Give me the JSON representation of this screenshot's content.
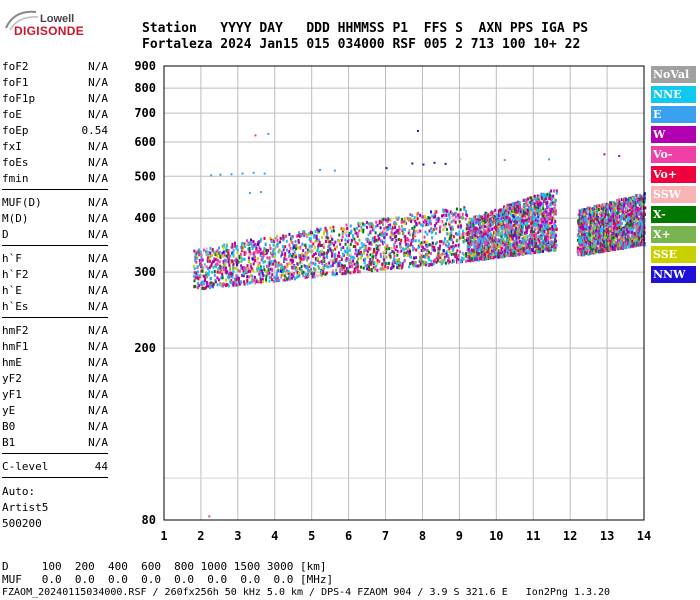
{
  "logo": {
    "brand": "Lowell",
    "product": "DIGISONDE"
  },
  "header": {
    "row1": "Station   YYYY DAY   DDD HHMMSS P1  FFS S  AXN PPS IGA PS",
    "row2": "Fortaleza 2024 Jan15 015 034000 RSF 005 2 713 100 10+ 22"
  },
  "params": [
    {
      "group": [
        [
          "foF2",
          "N/A"
        ],
        [
          "foF1",
          "N/A"
        ],
        [
          "foF1p",
          "N/A"
        ],
        [
          "foE",
          "N/A"
        ],
        [
          "foEp",
          "0.54"
        ],
        [
          "fxI",
          "N/A"
        ],
        [
          "foEs",
          "N/A"
        ],
        [
          "fmin",
          "N/A"
        ]
      ]
    },
    {
      "group": [
        [
          "MUF(D)",
          "N/A"
        ],
        [
          "M(D)",
          "N/A"
        ],
        [
          "D",
          "N/A"
        ]
      ]
    },
    {
      "group": [
        [
          "h`F",
          "N/A"
        ],
        [
          "h`F2",
          "N/A"
        ],
        [
          "h`E",
          "N/A"
        ],
        [
          "h`Es",
          "N/A"
        ]
      ]
    },
    {
      "group": [
        [
          "hmF2",
          "N/A"
        ],
        [
          "hmF1",
          "N/A"
        ],
        [
          "hmE",
          "N/A"
        ],
        [
          "yF2",
          "N/A"
        ],
        [
          "yF1",
          "N/A"
        ],
        [
          "yE",
          "N/A"
        ],
        [
          "B0",
          "N/A"
        ],
        [
          "B1",
          "N/A"
        ]
      ]
    },
    {
      "group": [
        [
          "C-level",
          "44"
        ]
      ]
    }
  ],
  "autoscale": {
    "label": "Auto:",
    "name": "Artist5",
    "version": "500200"
  },
  "legend": [
    {
      "label": "NoVal",
      "color": "#a0a0a0"
    },
    {
      "label": "NNE",
      "color": "#10c8f0"
    },
    {
      "label": "E",
      "color": "#3aa0f0"
    },
    {
      "label": "W",
      "color": "#b000b0"
    },
    {
      "label": "Vo-",
      "color": "#f040a8"
    },
    {
      "label": "Vo+",
      "color": "#f0003c"
    },
    {
      "label": "SSW",
      "color": "#f8b4b4"
    },
    {
      "label": "X-",
      "color": "#007800"
    },
    {
      "label": "X+",
      "color": "#78b450"
    },
    {
      "label": "SSE",
      "color": "#c8d000"
    },
    {
      "label": "NNW",
      "color": "#1e10d8"
    }
  ],
  "footer": {
    "d_row": "D     100  200  400  600  800 1000 1500 3000 [km]",
    "muf_row": "MUF   0.0  0.0  0.0  0.0  0.0  0.0  0.0  0.0 [MHz]",
    "file_row": "FZAOM_20240115034000.RSF / 260fx256h 50 kHz 5.0 km / DPS-4 FZAOM 904 / 3.9 S 321.6 E   Ion2Png 1.3.20"
  },
  "chart_data": {
    "type": "scatter",
    "xlabel": "",
    "ylabel": "",
    "xlim": [
      1,
      14
    ],
    "ylim": [
      80,
      900
    ],
    "x_ticks": [
      1,
      2,
      3,
      4,
      5,
      6,
      7,
      8,
      9,
      10,
      11,
      12,
      13,
      14
    ],
    "y_ticks": [
      80,
      200,
      300,
      400,
      500,
      600,
      700,
      800,
      900
    ],
    "y_scale": "log",
    "grid": true,
    "traces": [
      {
        "note": "F-trace main band",
        "x_range": [
          1.8,
          9.2
        ],
        "h_low": [
          275,
          320
        ],
        "h_high": [
          340,
          430
        ]
      },
      {
        "note": "F-trace upper band",
        "x_range": [
          9.2,
          11.6
        ],
        "h_low": [
          320,
          340
        ],
        "h_high": [
          400,
          470
        ]
      },
      {
        "note": "F-trace high freq",
        "x_range": [
          12.2,
          14.0
        ],
        "h_low": [
          330,
          350
        ],
        "h_high": [
          420,
          460
        ]
      }
    ],
    "isolated_points": [
      {
        "x": 2.25,
        "y": 505,
        "series": "E"
      },
      {
        "x": 2.5,
        "y": 507,
        "series": "E"
      },
      {
        "x": 2.8,
        "y": 508,
        "series": "E"
      },
      {
        "x": 3.1,
        "y": 510,
        "series": "E"
      },
      {
        "x": 3.4,
        "y": 512,
        "series": "E"
      },
      {
        "x": 3.7,
        "y": 510,
        "series": "E"
      },
      {
        "x": 3.3,
        "y": 460,
        "series": "E"
      },
      {
        "x": 3.6,
        "y": 462,
        "series": "E"
      },
      {
        "x": 3.45,
        "y": 625,
        "series": "Vo-"
      },
      {
        "x": 3.8,
        "y": 630,
        "series": "E"
      },
      {
        "x": 5.2,
        "y": 520,
        "series": "E"
      },
      {
        "x": 5.6,
        "y": 518,
        "series": "E"
      },
      {
        "x": 7.0,
        "y": 525,
        "series": "NNW"
      },
      {
        "x": 7.7,
        "y": 538,
        "series": "NNW"
      },
      {
        "x": 8.0,
        "y": 535,
        "series": "NNW"
      },
      {
        "x": 8.3,
        "y": 540,
        "series": "NNW"
      },
      {
        "x": 8.6,
        "y": 537,
        "series": "NNW"
      },
      {
        "x": 7.85,
        "y": 640,
        "series": "NNW"
      },
      {
        "x": 9.0,
        "y": 550,
        "series": "SSW"
      },
      {
        "x": 10.2,
        "y": 548,
        "series": "E"
      },
      {
        "x": 11.4,
        "y": 550,
        "series": "E"
      },
      {
        "x": 12.9,
        "y": 565,
        "series": "W"
      },
      {
        "x": 13.3,
        "y": 560,
        "series": "W"
      },
      {
        "x": 2.2,
        "y": 82,
        "series": "Vo-"
      }
    ]
  }
}
